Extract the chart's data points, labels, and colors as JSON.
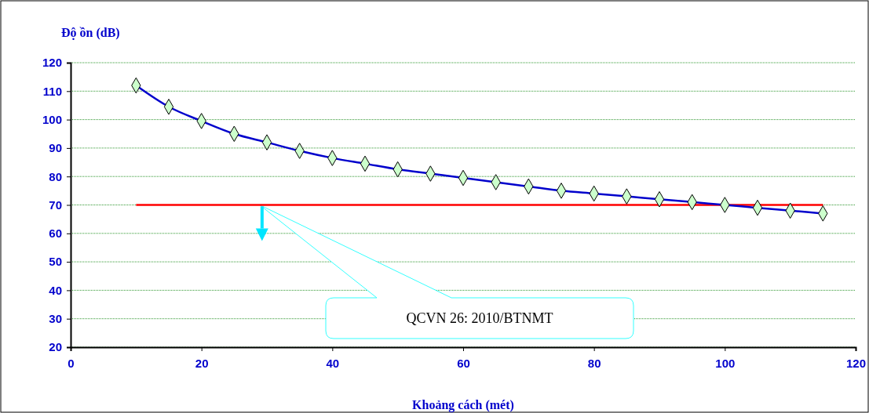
{
  "chart_data": {
    "type": "line",
    "xlabel": "Khoảng cách (mét)",
    "ylabel": "Độ ồn (dB)",
    "xlim": [
      0,
      120
    ],
    "xticks": [
      0,
      20,
      40,
      60,
      80,
      100,
      120
    ],
    "ylim": [
      20,
      120
    ],
    "yticks": [
      20,
      30,
      40,
      50,
      60,
      70,
      80,
      90,
      100,
      110,
      120
    ],
    "grid": "y",
    "series": [
      {
        "color": "#0000cc",
        "marker": "diamond",
        "x": [
          10,
          15,
          20,
          25,
          30,
          35,
          40,
          45,
          50,
          55,
          60,
          65,
          70,
          75,
          80,
          85,
          90,
          95,
          100,
          105,
          110,
          115
        ],
        "values": [
          112,
          104.5,
          99.5,
          95,
          92,
          89,
          86.5,
          84.5,
          82.5,
          81,
          79.5,
          78,
          76.5,
          75,
          74,
          73,
          72,
          71,
          70,
          69,
          68,
          67
        ]
      },
      {
        "color": "#ff0000",
        "marker": "none",
        "x": [
          10,
          115
        ],
        "values": [
          70,
          70
        ]
      }
    ],
    "annotations": [
      "QCVN 26: 2010/BTNMT"
    ]
  }
}
